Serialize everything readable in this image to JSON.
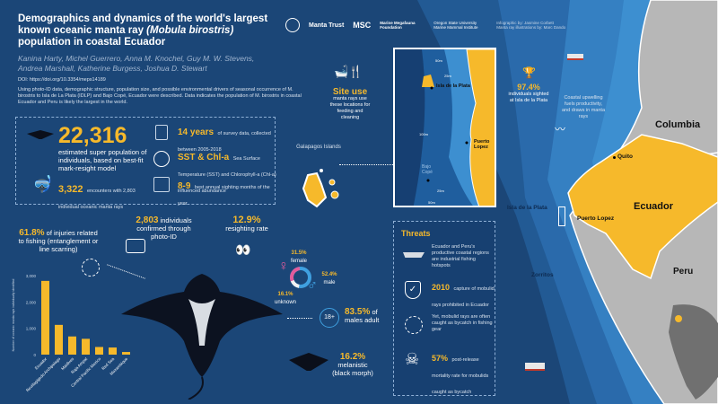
{
  "header": {
    "title_part1": "Demographics and dynamics of the world's largest known oceanic manta ray ",
    "title_species": "(Mobula birostris)",
    "title_part2": " population in coastal Ecuador",
    "authors": "Kanina Harty, Michel Guerrero, Anna M. Knochel, Guy M. W. Stevens, Andrea Marshall, Katherine Burgess, Joshua D. Stewart",
    "doi": "DOI: https://doi.org/10.3354/meps14189",
    "summary": "Using photo-ID data, demographic structure, population size, and possible environmental drivers of seasonal occurrence of M. birostris to Isla de La Plata (IDLP) and Bajo Copé, Ecuador were described. Data indicates the population of M. birostris in coastal Ecuador and Peru is likely the largest in the world."
  },
  "logos": [
    "Manta Trust",
    "MSC",
    "Marine Megafauna Foundation",
    "Oregon State University Marine Mammal Institute"
  ],
  "credits": "Infographic by: Jasmine Corbett\nManta ray illustrations by: Marc Dando",
  "stats": {
    "population_value": "22,316",
    "population_text": "estimated super population of individuals, based on best-fit mark-resight model",
    "encounters_value": "3,322",
    "encounters_text": "encounters with 2,803 individual oceanic manta rays",
    "years_value": "14 years",
    "years_text": "of survey data, collected between 2005-2018",
    "sst_value": "SST & Chl-a",
    "sst_text": "Sea Surface Temperature (SST) and Chlorophyll-a (Chl-a) influenced abundance",
    "months_value": "8-9",
    "months_text": "best annual sighting months of the year"
  },
  "callouts": {
    "injuries_value": "61.8%",
    "injuries_text": "of injuries related to fishing (entanglement or line scarring)",
    "photoid_value": "2,803",
    "photoid_text": "individuals confirmed through photo-ID",
    "resight_value": "12.9%",
    "resight_text": "resighting rate",
    "female_value": "31.5%",
    "female_label": "female",
    "male_value": "52.4%",
    "male_label": "male",
    "unknown_value": "16.1%",
    "unknown_label": "unknown",
    "adult_badge": "18+",
    "adult_value": "83.5%",
    "adult_text": "of males adult",
    "melanistic_value": "16.2%",
    "melanistic_text": "melanistic (black morph)"
  },
  "colors": {
    "background": "#1b4677",
    "accent": "#f6b92b",
    "female": "#e25b9b",
    "male": "#3fa0e0",
    "land": "#b7b7b7",
    "ecuador": "#f6b92b"
  },
  "chart_data": {
    "type": "bar",
    "ylabel": "Number of oceanic manta rays individually identified",
    "categories": [
      "Ecuador",
      "Revillagigedo Archipelago",
      "Maldives",
      "Raja Ampat",
      "Central Pacific Mexico",
      "Red Sea",
      "Mozambique"
    ],
    "values": [
      2800,
      1130,
      690,
      600,
      290,
      270,
      100
    ],
    "ylim": [
      0,
      3000
    ],
    "yticks": [
      "0",
      "1,000",
      "2,000",
      "3,000"
    ],
    "grid": false
  },
  "map": {
    "site_use_title": "Site use",
    "site_use_text": "manta rays use these locations for feeding and cleaning",
    "galapagos": "Galapagos Islands",
    "isla_plata_inset": "Isla de la Plata",
    "puerto_lopez_inset": "Puerto Lopez",
    "bajo_cope": "Bajo Copé",
    "depths": [
      "50m",
      "25m",
      "100m",
      "25m",
      "50m"
    ],
    "sighted_value": "97.4%",
    "sighted_text": "individuals sighted at Isla de la Plata",
    "upwelling_text": "Coastal upwelling fuels productivity, and draws in manta rays",
    "columbia": "Columbia",
    "ecuador": "Ecuador",
    "peru": "Peru",
    "quito": "Quito",
    "isla_plata": "Isla de la Plata",
    "puerto_lopez": "Puerto Lopez",
    "zorritos": "Zorritos"
  },
  "threats": {
    "title": "Threats",
    "items": [
      {
        "value": "",
        "text": "Ecuador and Peru's productive coastal regions are industrial fishing hotspots"
      },
      {
        "value": "2010",
        "text": "capture of mobulid rays prohibited in Ecuador"
      },
      {
        "value": "",
        "text": "Yet, mobulid rays are often caught as bycatch in fishing gear"
      },
      {
        "value": "57%",
        "text": "post-release mortality rate for mobulids caught as bycatch"
      }
    ]
  }
}
